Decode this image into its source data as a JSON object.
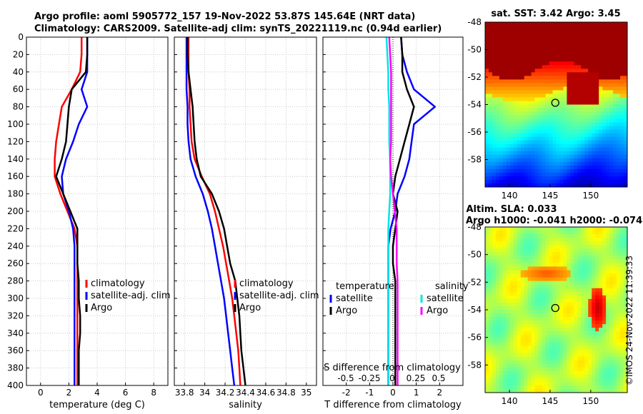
{
  "header": {
    "line1": "Argo profile: aoml 5905772_157 19-Nov-2022 53.87S 145.64E (NRT data)",
    "line2": "Climatology: CARS2009. Satellite-adj clim: synTS_20221119.nc (0.94d earlier)"
  },
  "colors": {
    "climatology": "#ff0000",
    "satellite": "#0000ff",
    "argo": "#000000",
    "satellite_s": "#00e5e5",
    "argo_s": "#ff00ff"
  },
  "sst_map": {
    "title": "sat. SST: 3.42 Argo: 3.45"
  },
  "sla_map": {
    "title1": "Altim. SLA: 0.033",
    "title2": "Argo h1000: -0.041 h2000: -0.074"
  },
  "stamp": "©IMOS 24-Nov-2022 11:39:33",
  "chart_data": [
    {
      "type": "line",
      "id": "temperature",
      "xlabel": "temperature (deg C)",
      "ylabel": "depth",
      "xlim": [
        -1,
        9
      ],
      "ylim": [
        400,
        0
      ],
      "xticks": [
        "0",
        "2",
        "4",
        "6",
        "8"
      ],
      "yticks": [
        "0",
        "20",
        "40",
        "60",
        "80",
        "100",
        "120",
        "140",
        "160",
        "180",
        "200",
        "220",
        "240",
        "260",
        "280",
        "300",
        "320",
        "340",
        "360",
        "380",
        "400"
      ],
      "legend": [
        "climatology",
        "satellite-adj. clim",
        "Argo"
      ],
      "series": [
        {
          "name": "climatology",
          "x": [
            2.9,
            2.9,
            2.8,
            2.2,
            1.5,
            1.3,
            1.1,
            1.0,
            1.0,
            1.4,
            1.9,
            2.4,
            2.6,
            2.6,
            2.6,
            2.6,
            2.6,
            2.6,
            2.6,
            2.6,
            2.6
          ],
          "y": [
            0,
            20,
            40,
            60,
            80,
            100,
            120,
            140,
            160,
            180,
            200,
            220,
            240,
            260,
            280,
            300,
            320,
            340,
            360,
            380,
            400
          ]
        },
        {
          "name": "satellite-adj. clim",
          "x": [
            3.3,
            3.3,
            3.3,
            2.9,
            3.3,
            2.7,
            2.3,
            1.8,
            1.5,
            1.6,
            2.0,
            2.3,
            2.4,
            2.4,
            2.4,
            2.4,
            2.4,
            2.4,
            2.4,
            2.4,
            2.4
          ],
          "y": [
            0,
            20,
            40,
            60,
            80,
            100,
            120,
            140,
            160,
            180,
            200,
            220,
            240,
            260,
            280,
            300,
            320,
            340,
            360,
            380,
            400
          ]
        },
        {
          "name": "Argo",
          "x": [
            3.3,
            3.3,
            3.2,
            2.2,
            2.0,
            1.9,
            1.8,
            1.5,
            1.1,
            1.6,
            2.1,
            2.6,
            2.6,
            2.6,
            2.7,
            2.7,
            2.8,
            2.8,
            2.7,
            2.7,
            2.7
          ],
          "y": [
            0,
            20,
            40,
            60,
            80,
            100,
            120,
            140,
            160,
            180,
            200,
            220,
            240,
            260,
            280,
            300,
            320,
            340,
            360,
            380,
            400
          ]
        }
      ]
    },
    {
      "type": "line",
      "id": "salinity",
      "xlabel": "salinity",
      "xlim": [
        33.7,
        35.1
      ],
      "ylim": [
        400,
        0
      ],
      "xticks": [
        "33.8",
        "34",
        "34.2",
        "34.4",
        "34.6",
        "34.8",
        "35"
      ],
      "legend": [
        "climatology",
        "satellite-adj. clim",
        "Argo"
      ],
      "series": [
        {
          "name": "climatology",
          "x": [
            33.84,
            33.84,
            33.84,
            33.85,
            33.85,
            33.86,
            33.87,
            33.9,
            33.97,
            34.05,
            34.1,
            34.14,
            34.18,
            34.21,
            34.24,
            34.27,
            34.29,
            34.31,
            34.33,
            34.34,
            34.35
          ],
          "y": [
            0,
            20,
            40,
            60,
            80,
            100,
            120,
            140,
            160,
            180,
            200,
            220,
            240,
            260,
            280,
            300,
            320,
            340,
            360,
            380,
            400
          ]
        },
        {
          "name": "satellite-adj. clim",
          "x": [
            33.82,
            33.82,
            33.82,
            33.82,
            33.83,
            33.83,
            33.84,
            33.86,
            33.91,
            33.98,
            34.03,
            34.07,
            34.1,
            34.13,
            34.16,
            34.19,
            34.21,
            34.23,
            34.25,
            34.27,
            34.29
          ],
          "y": [
            0,
            20,
            40,
            60,
            80,
            100,
            120,
            140,
            160,
            180,
            200,
            220,
            240,
            260,
            280,
            300,
            320,
            340,
            360,
            380,
            400
          ]
        },
        {
          "name": "Argo",
          "x": [
            33.83,
            33.83,
            33.84,
            33.86,
            33.88,
            33.89,
            33.9,
            33.92,
            33.96,
            34.07,
            34.14,
            34.19,
            34.22,
            34.25,
            34.3,
            34.32,
            34.34,
            34.35,
            34.36,
            34.38,
            34.4
          ],
          "y": [
            0,
            20,
            40,
            60,
            80,
            100,
            120,
            140,
            160,
            180,
            200,
            220,
            240,
            260,
            280,
            300,
            320,
            340,
            360,
            380,
            400
          ]
        }
      ]
    },
    {
      "type": "line",
      "id": "difference",
      "xlabel": "T difference from climatology",
      "xlabel_top": "S difference from climatology",
      "xlim": [
        -3,
        3
      ],
      "ylim": [
        400,
        0
      ],
      "xticks": [
        "-2",
        "-1",
        "0",
        "1",
        "2"
      ],
      "xticks_s": [
        "-0.5",
        "-0.25",
        "0",
        "0.25",
        "0.5"
      ],
      "legend_temperature_title": "temperature",
      "legend_salinity_title": "salinity",
      "legend": [
        "satellite",
        "Argo",
        "satellite",
        "Argo"
      ],
      "series": [
        {
          "name": "satellite",
          "variable": "temperature",
          "x": [
            0.35,
            0.4,
            0.6,
            0.9,
            1.8,
            0.9,
            0.8,
            0.7,
            0.5,
            0.2,
            0.1,
            -0.1,
            -0.2,
            -0.2,
            -0.2,
            -0.2,
            -0.2,
            -0.2,
            -0.2,
            -0.2,
            -0.2
          ],
          "y": [
            0,
            20,
            40,
            60,
            80,
            100,
            120,
            140,
            160,
            180,
            200,
            220,
            240,
            260,
            280,
            300,
            320,
            340,
            360,
            380,
            400
          ]
        },
        {
          "name": "Argo",
          "variable": "temperature",
          "x": [
            0.35,
            0.4,
            0.4,
            0.6,
            0.9,
            0.7,
            0.5,
            0.3,
            0.1,
            0.0,
            0.2,
            0.1,
            0.0,
            0.0,
            0.1,
            0.1,
            0.1,
            0.1,
            0.1,
            0.1,
            0.1
          ],
          "y": [
            0,
            20,
            40,
            60,
            80,
            100,
            120,
            140,
            160,
            180,
            200,
            220,
            240,
            260,
            280,
            300,
            320,
            340,
            360,
            380,
            400
          ]
        },
        {
          "name": "satellite",
          "variable": "salinity",
          "x": [
            -0.07,
            -0.06,
            -0.05,
            -0.05,
            -0.04,
            -0.04,
            -0.04,
            -0.03,
            -0.03,
            -0.03,
            -0.04,
            -0.05,
            -0.05,
            -0.05,
            -0.05,
            -0.05,
            -0.05,
            -0.05,
            -0.05,
            -0.05,
            -0.05
          ],
          "y": [
            0,
            20,
            40,
            60,
            80,
            100,
            120,
            140,
            160,
            180,
            200,
            220,
            240,
            260,
            280,
            300,
            320,
            340,
            360,
            380,
            400
          ]
        },
        {
          "name": "Argo",
          "variable": "salinity",
          "x": [
            -0.04,
            -0.03,
            -0.02,
            -0.02,
            -0.02,
            -0.02,
            -0.02,
            -0.03,
            -0.02,
            0.0,
            0.02,
            0.04,
            0.04,
            0.04,
            0.05,
            0.05,
            0.05,
            0.05,
            0.05,
            0.05,
            0.05
          ],
          "y": [
            0,
            20,
            40,
            60,
            80,
            100,
            120,
            140,
            160,
            180,
            200,
            220,
            240,
            260,
            280,
            300,
            320,
            340,
            360,
            380,
            400
          ]
        }
      ]
    },
    {
      "type": "heatmap",
      "id": "sst_map",
      "xticks": [
        "140",
        "145",
        "150"
      ],
      "yticks": [
        "-48",
        "-50",
        "-52",
        "-54",
        "-56",
        "-58"
      ],
      "xlim": [
        137,
        154.5
      ],
      "ylim": [
        -60,
        -48
      ],
      "argo_position": {
        "lon": 145.64,
        "lat": -53.87
      }
    },
    {
      "type": "heatmap",
      "id": "sla_map",
      "xticks": [
        "140",
        "145",
        "150"
      ],
      "yticks": [
        "-48",
        "-50",
        "-52",
        "-54",
        "-56",
        "-58"
      ],
      "xlim": [
        137,
        154.5
      ],
      "ylim": [
        -60,
        -48
      ],
      "argo_position": {
        "lon": 145.64,
        "lat": -53.87
      }
    }
  ]
}
